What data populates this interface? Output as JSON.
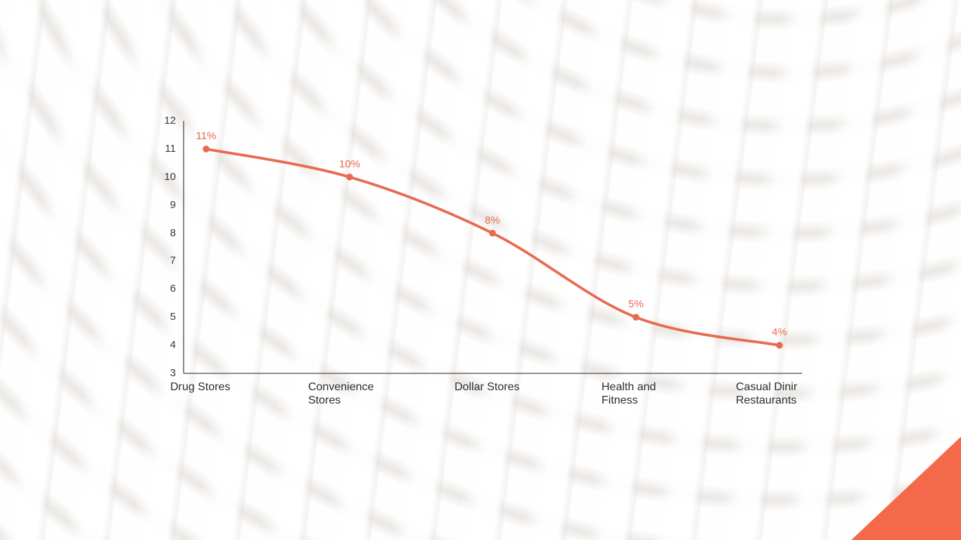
{
  "slide": {
    "background_color": "#f4f2f0",
    "corner_triangle_color": "#f5694b"
  },
  "chart_data": {
    "type": "line",
    "title": "",
    "xlabel": "",
    "ylabel": "",
    "categories": [
      "Drug Stores",
      "Convenience Stores",
      "Dollar Stores",
      "Health and Fitness",
      "Casual Dinir Restaurants"
    ],
    "category_label_lines": [
      [
        "Drug Stores"
      ],
      [
        "Convenience",
        "Stores"
      ],
      [
        "Dollar Stores"
      ],
      [
        "Health and",
        "Fitness"
      ],
      [
        "Casual Dinir",
        "Restaurants"
      ]
    ],
    "values": [
      11,
      10,
      8,
      5,
      4
    ],
    "point_labels": [
      "11%",
      "10%",
      "8%",
      "5%",
      "4%"
    ],
    "unit": "%",
    "ylim": [
      3,
      12
    ],
    "yticks": [
      12,
      11,
      10,
      9,
      8,
      7,
      6,
      5,
      4,
      3
    ],
    "grid": false,
    "legend_position": "none",
    "line_color": "#e96a51",
    "point_color": "#e96a51",
    "axis_color": "#4f4b49",
    "tick_label_color": "#3a3a3a",
    "category_label_color": "#2d2d2d"
  }
}
